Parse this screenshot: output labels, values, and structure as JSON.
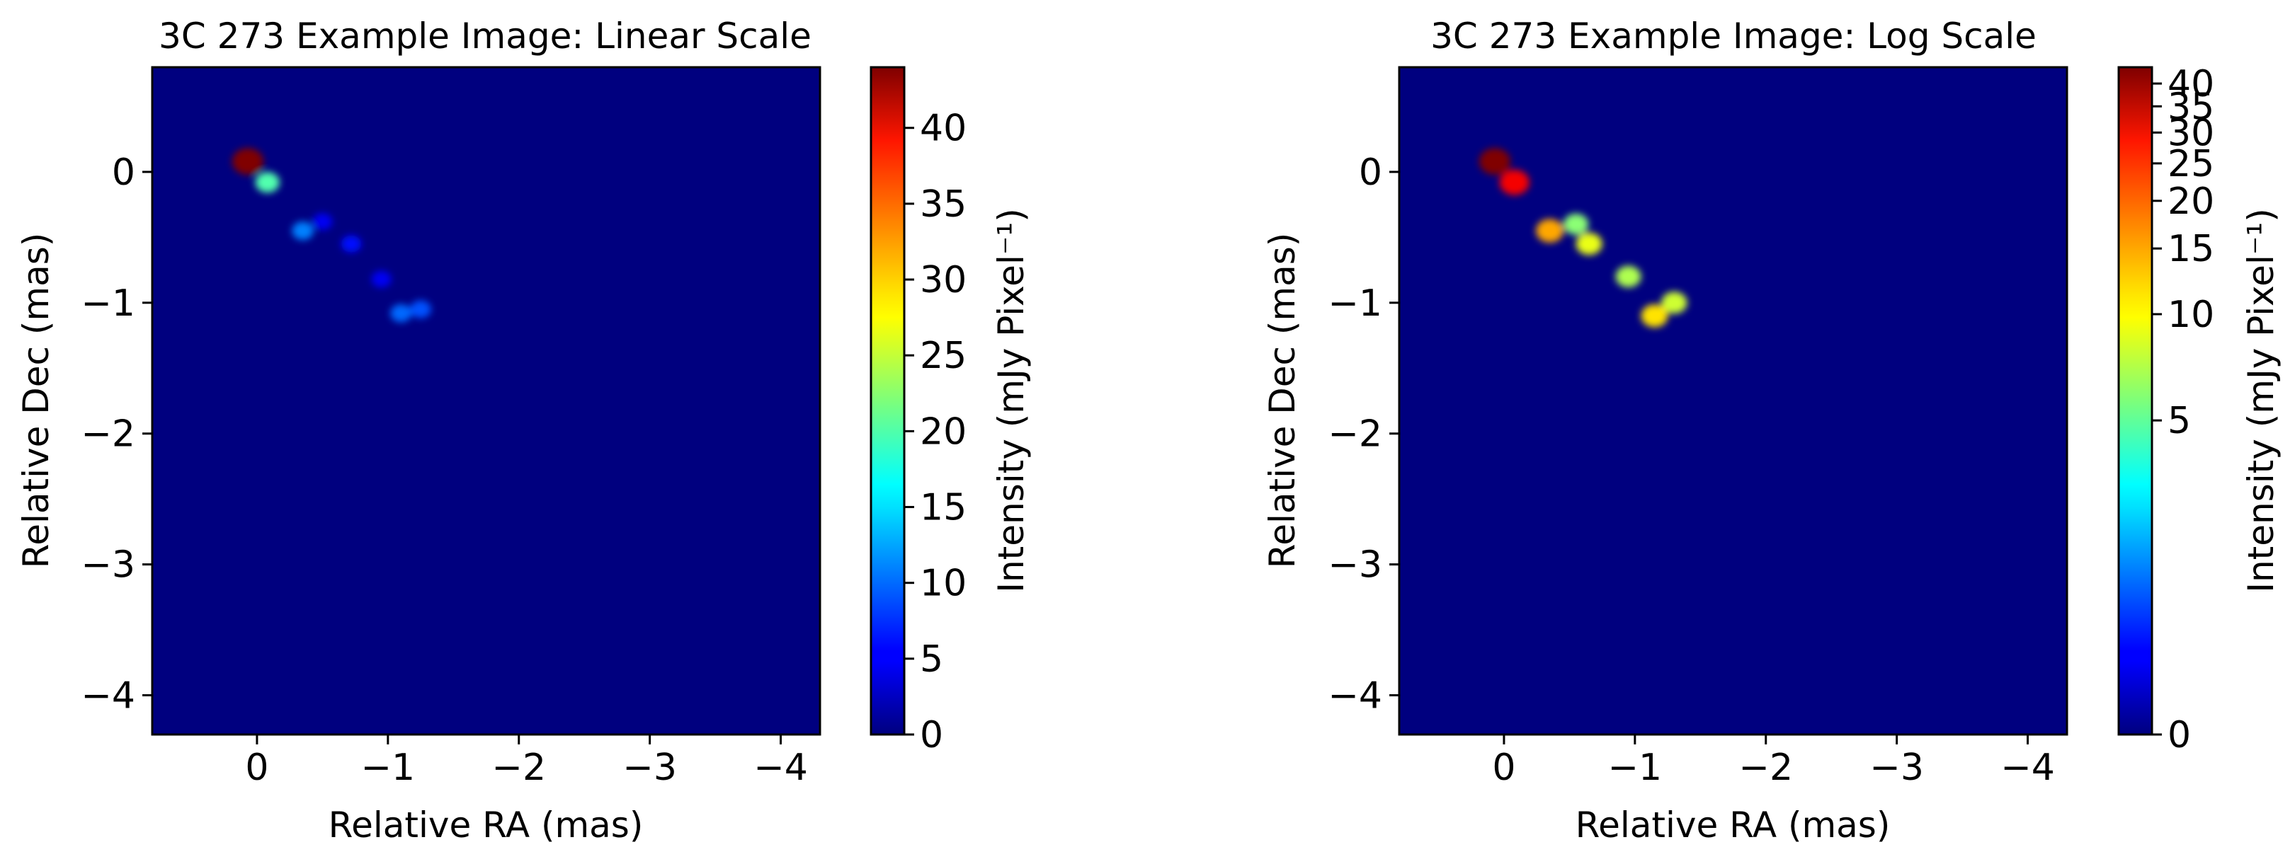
{
  "chart_data": [
    {
      "type": "heatmap",
      "title": "3C 273 Example Image: Linear Scale",
      "xlabel": "Relative RA (mas)",
      "ylabel": "Relative Dec (mas)",
      "colorbar_label": "Intensity (mJy Pixel⁻¹)",
      "colorbar_scale": "linear",
      "colormap": "jet",
      "xlim": [
        0.8,
        -4.3
      ],
      "ylim": [
        -4.3,
        0.8
      ],
      "xticks": [
        0,
        -1,
        -2,
        -3,
        -4
      ],
      "xtick_labels": [
        "0",
        "−1",
        "−2",
        "−3",
        "−4"
      ],
      "yticks": [
        0,
        -1,
        -2,
        -3,
        -4
      ],
      "ytick_labels": [
        "0",
        "−1",
        "−2",
        "−3",
        "−4"
      ],
      "color_range": [
        0,
        44
      ],
      "colorbar_ticks": [
        0,
        5,
        10,
        15,
        20,
        25,
        30,
        35,
        40
      ],
      "colorbar_tick_labels": [
        "0",
        "5",
        "10",
        "15",
        "20",
        "25",
        "30",
        "35",
        "40"
      ],
      "components": [
        {
          "ra": 0.07,
          "dec": 0.08,
          "intensity": 44
        },
        {
          "ra": -0.08,
          "dec": -0.08,
          "intensity": 20
        },
        {
          "ra": -0.35,
          "dec": -0.45,
          "intensity": 11
        },
        {
          "ra": -0.72,
          "dec": -0.55,
          "intensity": 6
        },
        {
          "ra": -0.95,
          "dec": -0.82,
          "intensity": 5
        },
        {
          "ra": -1.1,
          "dec": -1.08,
          "intensity": 10
        },
        {
          "ra": -1.25,
          "dec": -1.05,
          "intensity": 9
        },
        {
          "ra": -0.5,
          "dec": -0.38,
          "intensity": 5
        }
      ]
    },
    {
      "type": "heatmap",
      "title": "3C 273 Example Image: Log Scale",
      "xlabel": "Relative RA (mas)",
      "ylabel": "Relative Dec (mas)",
      "colorbar_label": "Intensity (mJy Pixel⁻¹)",
      "colorbar_scale": "log",
      "colormap": "jet",
      "xlim": [
        0.8,
        -4.3
      ],
      "ylim": [
        -4.3,
        0.8
      ],
      "xticks": [
        0,
        -1,
        -2,
        -3,
        -4
      ],
      "xtick_labels": [
        "0",
        "−1",
        "−2",
        "−3",
        "−4"
      ],
      "yticks": [
        0,
        -1,
        -2,
        -3,
        -4
      ],
      "ytick_labels": [
        "0",
        "−1",
        "−2",
        "−3",
        "−4"
      ],
      "color_range": [
        0,
        44
      ],
      "colorbar_ticks": [
        0,
        5,
        10,
        15,
        20,
        25,
        30,
        35,
        40
      ],
      "colorbar_tick_labels": [
        "0",
        "5",
        "10",
        "15",
        "20",
        "25",
        "30",
        "35",
        "40"
      ],
      "components": [
        {
          "ra": 0.07,
          "dec": 0.08,
          "intensity": 44
        },
        {
          "ra": -0.08,
          "dec": -0.08,
          "intensity": 28
        },
        {
          "ra": -0.35,
          "dec": -0.45,
          "intensity": 14
        },
        {
          "ra": -0.65,
          "dec": -0.55,
          "intensity": 9
        },
        {
          "ra": -0.95,
          "dec": -0.8,
          "intensity": 7
        },
        {
          "ra": -1.15,
          "dec": -1.1,
          "intensity": 11
        },
        {
          "ra": -1.3,
          "dec": -1.0,
          "intensity": 8
        },
        {
          "ra": -0.55,
          "dec": -0.4,
          "intensity": 6
        }
      ]
    }
  ]
}
